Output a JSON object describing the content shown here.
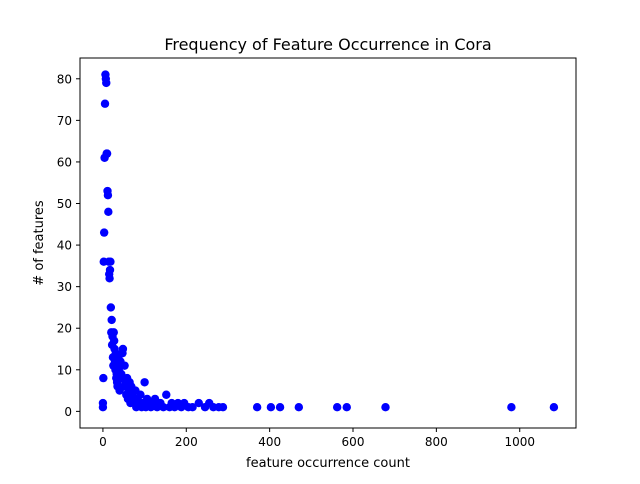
{
  "chart_data": {
    "type": "scatter",
    "title": "Frequency of Feature Occurrence in Cora",
    "xlabel": "feature occurrence count",
    "ylabel": "# of features",
    "xlim": [
      -55,
      1135
    ],
    "ylim": [
      -4,
      85
    ],
    "xticks": [
      0,
      200,
      400,
      600,
      800,
      1000
    ],
    "yticks": [
      0,
      10,
      20,
      30,
      40,
      50,
      60,
      70,
      80
    ],
    "grid": false,
    "marker_color": "#0000ff",
    "points": [
      {
        "x": 0,
        "y": 1
      },
      {
        "x": 0,
        "y": 2
      },
      {
        "x": 1,
        "y": 8
      },
      {
        "x": 2,
        "y": 36
      },
      {
        "x": 3,
        "y": 43
      },
      {
        "x": 4,
        "y": 61
      },
      {
        "x": 5,
        "y": 74
      },
      {
        "x": 6,
        "y": 81
      },
      {
        "x": 7,
        "y": 80
      },
      {
        "x": 8,
        "y": 79
      },
      {
        "x": 9,
        "y": 62
      },
      {
        "x": 10,
        "y": 62
      },
      {
        "x": 11,
        "y": 53
      },
      {
        "x": 12,
        "y": 52
      },
      {
        "x": 13,
        "y": 48
      },
      {
        "x": 14,
        "y": 36
      },
      {
        "x": 15,
        "y": 33
      },
      {
        "x": 16,
        "y": 32
      },
      {
        "x": 17,
        "y": 34
      },
      {
        "x": 18,
        "y": 36
      },
      {
        "x": 19,
        "y": 25
      },
      {
        "x": 20,
        "y": 19
      },
      {
        "x": 21,
        "y": 22
      },
      {
        "x": 22,
        "y": 16
      },
      {
        "x": 23,
        "y": 18
      },
      {
        "x": 24,
        "y": 13
      },
      {
        "x": 25,
        "y": 11
      },
      {
        "x": 26,
        "y": 19
      },
      {
        "x": 27,
        "y": 17
      },
      {
        "x": 28,
        "y": 15
      },
      {
        "x": 29,
        "y": 12
      },
      {
        "x": 30,
        "y": 10
      },
      {
        "x": 31,
        "y": 14
      },
      {
        "x": 32,
        "y": 8
      },
      {
        "x": 33,
        "y": 9
      },
      {
        "x": 34,
        "y": 7
      },
      {
        "x": 35,
        "y": 6
      },
      {
        "x": 36,
        "y": 11
      },
      {
        "x": 37,
        "y": 13
      },
      {
        "x": 38,
        "y": 10
      },
      {
        "x": 40,
        "y": 5
      },
      {
        "x": 42,
        "y": 12
      },
      {
        "x": 44,
        "y": 9
      },
      {
        "x": 46,
        "y": 8
      },
      {
        "x": 47,
        "y": 14
      },
      {
        "x": 48,
        "y": 15
      },
      {
        "x": 50,
        "y": 6
      },
      {
        "x": 52,
        "y": 11
      },
      {
        "x": 54,
        "y": 7
      },
      {
        "x": 56,
        "y": 4
      },
      {
        "x": 58,
        "y": 8
      },
      {
        "x": 60,
        "y": 3
      },
      {
        "x": 62,
        "y": 5
      },
      {
        "x": 64,
        "y": 7
      },
      {
        "x": 66,
        "y": 2
      },
      {
        "x": 68,
        "y": 6
      },
      {
        "x": 70,
        "y": 4
      },
      {
        "x": 72,
        "y": 3
      },
      {
        "x": 75,
        "y": 2
      },
      {
        "x": 78,
        "y": 5
      },
      {
        "x": 80,
        "y": 1
      },
      {
        "x": 83,
        "y": 3
      },
      {
        "x": 86,
        "y": 2
      },
      {
        "x": 90,
        "y": 4
      },
      {
        "x": 93,
        "y": 1
      },
      {
        "x": 96,
        "y": 2
      },
      {
        "x": 100,
        "y": 7
      },
      {
        "x": 103,
        "y": 1
      },
      {
        "x": 106,
        "y": 3
      },
      {
        "x": 110,
        "y": 2
      },
      {
        "x": 115,
        "y": 1
      },
      {
        "x": 120,
        "y": 2
      },
      {
        "x": 125,
        "y": 3
      },
      {
        "x": 130,
        "y": 1
      },
      {
        "x": 138,
        "y": 2
      },
      {
        "x": 145,
        "y": 1
      },
      {
        "x": 152,
        "y": 4
      },
      {
        "x": 160,
        "y": 1
      },
      {
        "x": 165,
        "y": 2
      },
      {
        "x": 172,
        "y": 1
      },
      {
        "x": 180,
        "y": 2
      },
      {
        "x": 188,
        "y": 1
      },
      {
        "x": 195,
        "y": 2
      },
      {
        "x": 205,
        "y": 1
      },
      {
        "x": 215,
        "y": 1
      },
      {
        "x": 230,
        "y": 2
      },
      {
        "x": 245,
        "y": 1
      },
      {
        "x": 255,
        "y": 2
      },
      {
        "x": 265,
        "y": 1
      },
      {
        "x": 278,
        "y": 1
      },
      {
        "x": 288,
        "y": 1
      },
      {
        "x": 370,
        "y": 1
      },
      {
        "x": 403,
        "y": 1
      },
      {
        "x": 425,
        "y": 1
      },
      {
        "x": 470,
        "y": 1
      },
      {
        "x": 562,
        "y": 1
      },
      {
        "x": 585,
        "y": 1
      },
      {
        "x": 678,
        "y": 1
      },
      {
        "x": 980,
        "y": 1
      },
      {
        "x": 1082,
        "y": 1
      }
    ]
  }
}
